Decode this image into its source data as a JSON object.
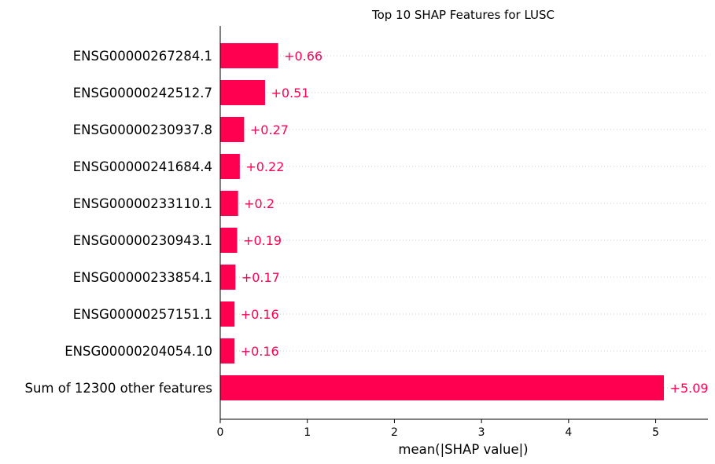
{
  "chart_data": {
    "type": "bar",
    "orientation": "horizontal",
    "title": "Top 10 SHAP Features for LUSC",
    "xlabel": "mean(|SHAP value|)",
    "ylabel": "",
    "xlim": [
      0,
      5.6
    ],
    "xticks": [
      0,
      1,
      2,
      3,
      4,
      5
    ],
    "grid": "dotted horizontal guide lines per row",
    "bar_color": "#ff0051",
    "categories": [
      "ENSG00000267284.1",
      "ENSG00000242512.7",
      "ENSG00000230937.8",
      "ENSG00000241684.4",
      "ENSG00000233110.1",
      "ENSG00000230943.1",
      "ENSG00000233854.1",
      "ENSG00000257151.1",
      "ENSG00000204054.10",
      "Sum of 12300 other features"
    ],
    "values": [
      0.66,
      0.51,
      0.27,
      0.22,
      0.2,
      0.19,
      0.17,
      0.16,
      0.16,
      5.09
    ],
    "value_labels": [
      "+0.66",
      "+0.51",
      "+0.27",
      "+0.22",
      "+0.2",
      "+0.19",
      "+0.17",
      "+0.16",
      "+0.16",
      "+5.09"
    ]
  }
}
